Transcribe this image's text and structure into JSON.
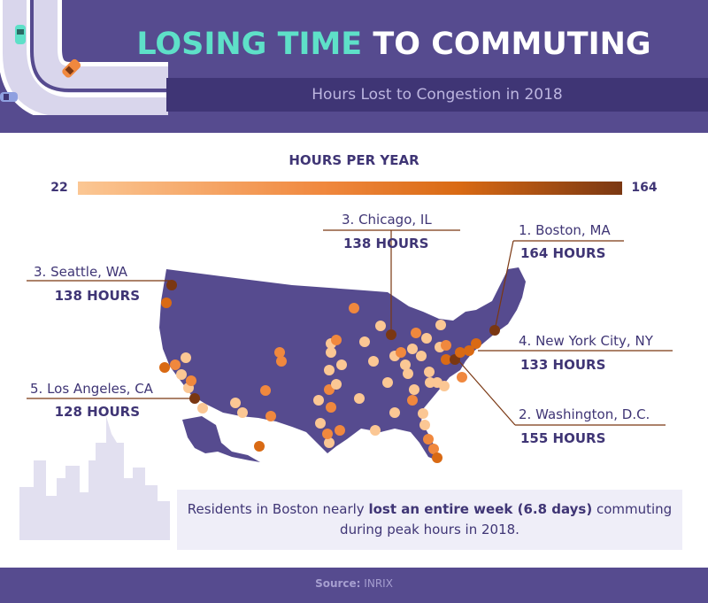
{
  "header": {
    "title_accent": "LOSING TIME",
    "title_rest": " TO COMMUTING",
    "subtitle": "Hours Lost to Congestion in 2018"
  },
  "legend": {
    "title": "HOURS PER YEAR",
    "min_label": "22",
    "max_label": "164",
    "min_value": 22,
    "max_value": 164,
    "colors": [
      "#fbc794",
      "#f0883e",
      "#d96a14",
      "#7a3712"
    ]
  },
  "cities": {
    "boston": {
      "name": "1. Boston, MA",
      "hours": "164 HOURS",
      "value": 164
    },
    "washington": {
      "name": "2. Washington, D.C.",
      "hours": "155 HOURS",
      "value": 155
    },
    "chicago": {
      "name": "3. Chicago, IL",
      "hours": "138 HOURS",
      "value": 138
    },
    "seattle": {
      "name": "3. Seattle, WA",
      "hours": "138 HOURS",
      "value": 138
    },
    "new_york": {
      "name": "4. New York City, NY",
      "hours": "133 HOURS",
      "value": 133
    },
    "los_angeles": {
      "name": "5. Los Angeles, CA",
      "hours": "128 HOURS",
      "value": 128
    }
  },
  "callout": {
    "before": "Residents in Boston nearly ",
    "bold": "lost an entire week (6.8 days)",
    "after": " commuting during peak hours in 2018."
  },
  "footer": {
    "source_label": "Source:",
    "source_value": " INRIX"
  },
  "colors": {
    "header_bg": "#564b8f",
    "subtitle_bar": "#3f3575",
    "accent_teal": "#5ee0c8",
    "map_fill": "#564b8f",
    "text_dark": "#3f3575"
  }
}
